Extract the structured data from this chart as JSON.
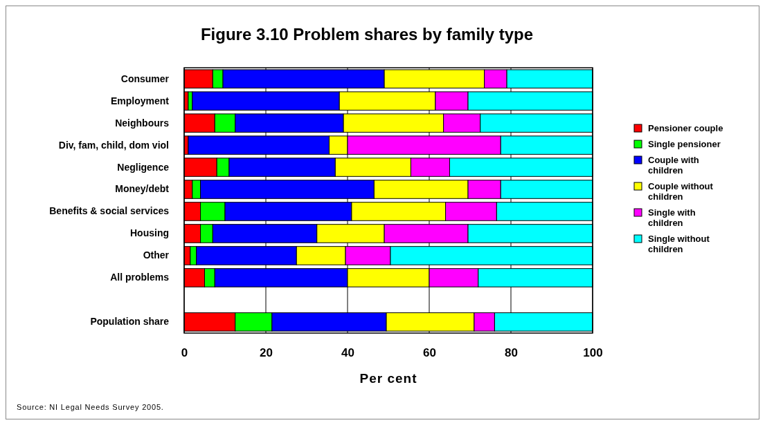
{
  "chart_data": {
    "type": "bar",
    "orientation": "horizontal",
    "stacked": true,
    "title": "Figure 3.10 Problem shares by family type",
    "xlabel": "Per cent",
    "categories": [
      "Consumer",
      "Employment",
      "Neighbours",
      "Div, fam, child, dom viol",
      "Negligence",
      "Money/debt",
      "Benefits & social services",
      "Housing",
      "Other",
      "All problems",
      null,
      "Population share"
    ],
    "series": [
      {
        "name": "Pensioner couple",
        "color": "#ff0000",
        "values": [
          7,
          1,
          7.5,
          1,
          8,
          2,
          4,
          4,
          1.5,
          5,
          null,
          12.5
        ]
      },
      {
        "name": "Single pensioner",
        "color": "#00ff00",
        "values": [
          2.5,
          1,
          5,
          0,
          3,
          2,
          6,
          3,
          1.5,
          2.5,
          null,
          9
        ]
      },
      {
        "name": "Couple with children",
        "color": "#0000ff",
        "values": [
          39.5,
          36,
          26.5,
          34.5,
          26,
          42.5,
          31,
          25.5,
          24.5,
          32.5,
          null,
          28
        ]
      },
      {
        "name": "Couple without children",
        "color": "#ffff00",
        "values": [
          24.5,
          23.5,
          24.5,
          4.5,
          18.5,
          23,
          23,
          16.5,
          12,
          20,
          null,
          21.5
        ]
      },
      {
        "name": "Single with children",
        "color": "#ff00ff",
        "values": [
          5.5,
          8,
          9,
          37.5,
          9.5,
          8,
          12.5,
          20.5,
          11,
          12,
          null,
          5
        ]
      },
      {
        "name": "Single without children",
        "color": "#00ffff",
        "values": [
          21,
          30.5,
          27.5,
          22.5,
          35,
          22.5,
          23.5,
          30.5,
          49.5,
          28,
          null,
          24
        ]
      }
    ],
    "xlim": [
      0,
      100
    ],
    "xticks": [
      0,
      20,
      40,
      60,
      80,
      100
    ],
    "grid": "x",
    "legend": "right",
    "annotations": [
      "Source: NI Legal Needs Survey 2005."
    ]
  }
}
